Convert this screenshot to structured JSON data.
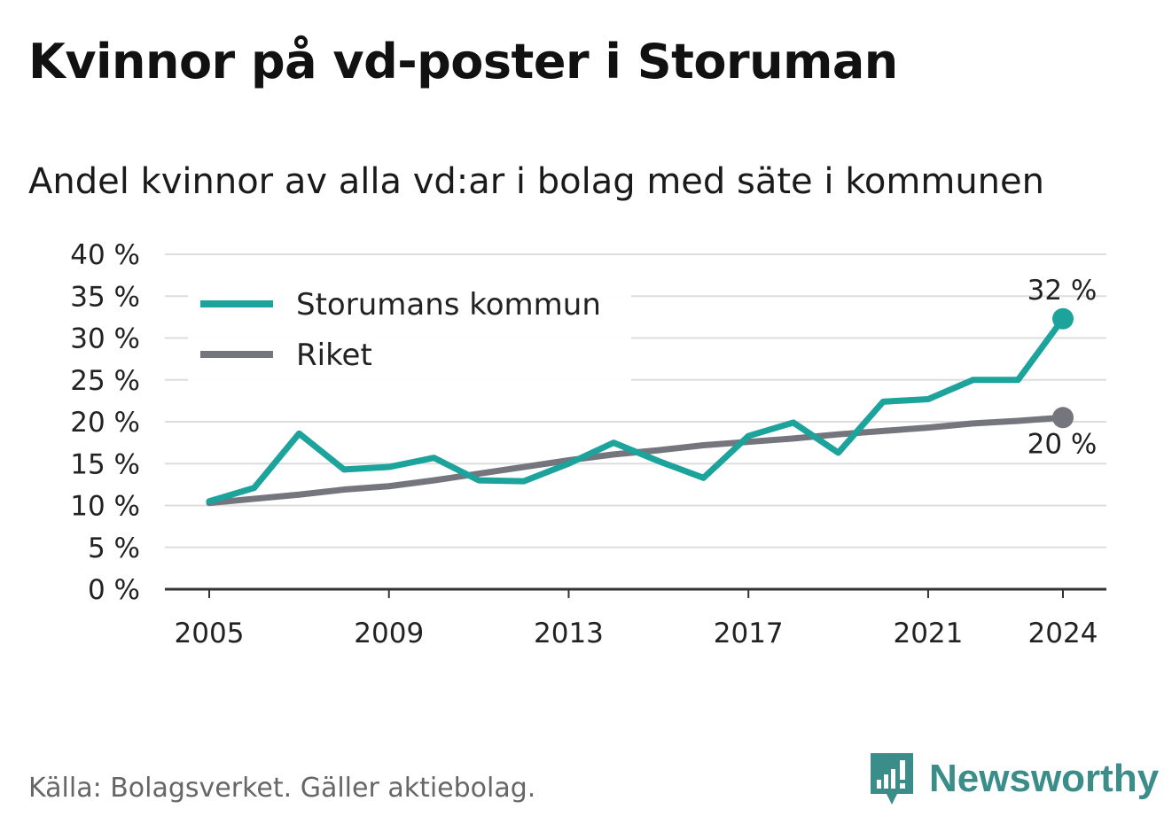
{
  "title": "Kvinnor på vd-poster i Storuman",
  "subtitle": "Andel kvinnor av alla vd:ar i bolag med säte i kommunen",
  "source": "Källa: Bolagsverket. Gäller aktiebolag.",
  "brand": "Newsworthy",
  "chart_data": {
    "type": "line",
    "x": [
      2005,
      2006,
      2007,
      2008,
      2009,
      2010,
      2011,
      2012,
      2013,
      2014,
      2015,
      2016,
      2017,
      2018,
      2019,
      2020,
      2021,
      2022,
      2023,
      2024
    ],
    "x_tick_values": [
      2005,
      2009,
      2013,
      2017,
      2021,
      2024
    ],
    "x_tick_labels": [
      "2005",
      "2009",
      "2013",
      "2017",
      "2021",
      "2024"
    ],
    "ylim": [
      0,
      40
    ],
    "y_tick_values": [
      0,
      5,
      10,
      15,
      20,
      25,
      30,
      35,
      40
    ],
    "y_tick_labels": [
      "0 %",
      "5 %",
      "10 %",
      "15 %",
      "20 %",
      "25 %",
      "30 %",
      "35 %",
      "40 %"
    ],
    "grid": true,
    "legend_position": "top-left",
    "series": [
      {
        "name": "Storumans kommun",
        "color": "#1ba39c",
        "values": [
          10.5,
          12.1,
          18.6,
          14.3,
          14.6,
          15.7,
          13.0,
          12.9,
          15.0,
          17.5,
          15.3,
          13.3,
          18.3,
          19.9,
          16.3,
          22.4,
          22.7,
          25.0,
          25.0,
          32.3
        ],
        "end_label": "32 %"
      },
      {
        "name": "Riket",
        "color": "#75757d",
        "values": [
          10.3,
          10.8,
          11.3,
          11.9,
          12.3,
          13.0,
          13.8,
          14.6,
          15.4,
          16.1,
          16.6,
          17.2,
          17.6,
          18.0,
          18.5,
          18.9,
          19.3,
          19.8,
          20.1,
          20.5
        ],
        "end_label": "20 %"
      }
    ]
  }
}
